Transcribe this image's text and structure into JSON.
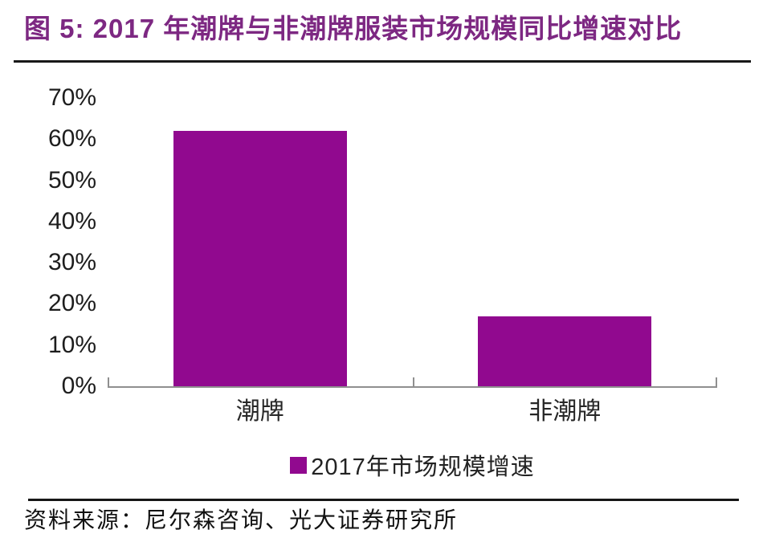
{
  "header": {
    "title": "图 5: 2017 年潮牌与非潮牌服装市场规模同比增速对比"
  },
  "chart_data": {
    "type": "bar",
    "title": "2017 年潮牌与非潮牌服装市场规模同比增速对比",
    "categories": [
      "潮牌",
      "非潮牌"
    ],
    "values": [
      62,
      17
    ],
    "unit": "%",
    "xlabel": "",
    "ylabel": "",
    "ylim": [
      0,
      70
    ],
    "yticks": [
      "0%",
      "10%",
      "20%",
      "30%",
      "40%",
      "50%",
      "60%",
      "70%"
    ],
    "grid": false,
    "legend": {
      "label": "2017年市场规模增速",
      "position": "bottom"
    },
    "bar_color": "#91098F",
    "axis_color": "#8f8f8f"
  },
  "footer": {
    "source": "资料来源：尼尔森咨询、光大证券研究所"
  },
  "colors": {
    "title": "#7D2882",
    "bar": "#91098F",
    "rule": "#181818",
    "tick_text": "#1d1d1d"
  }
}
